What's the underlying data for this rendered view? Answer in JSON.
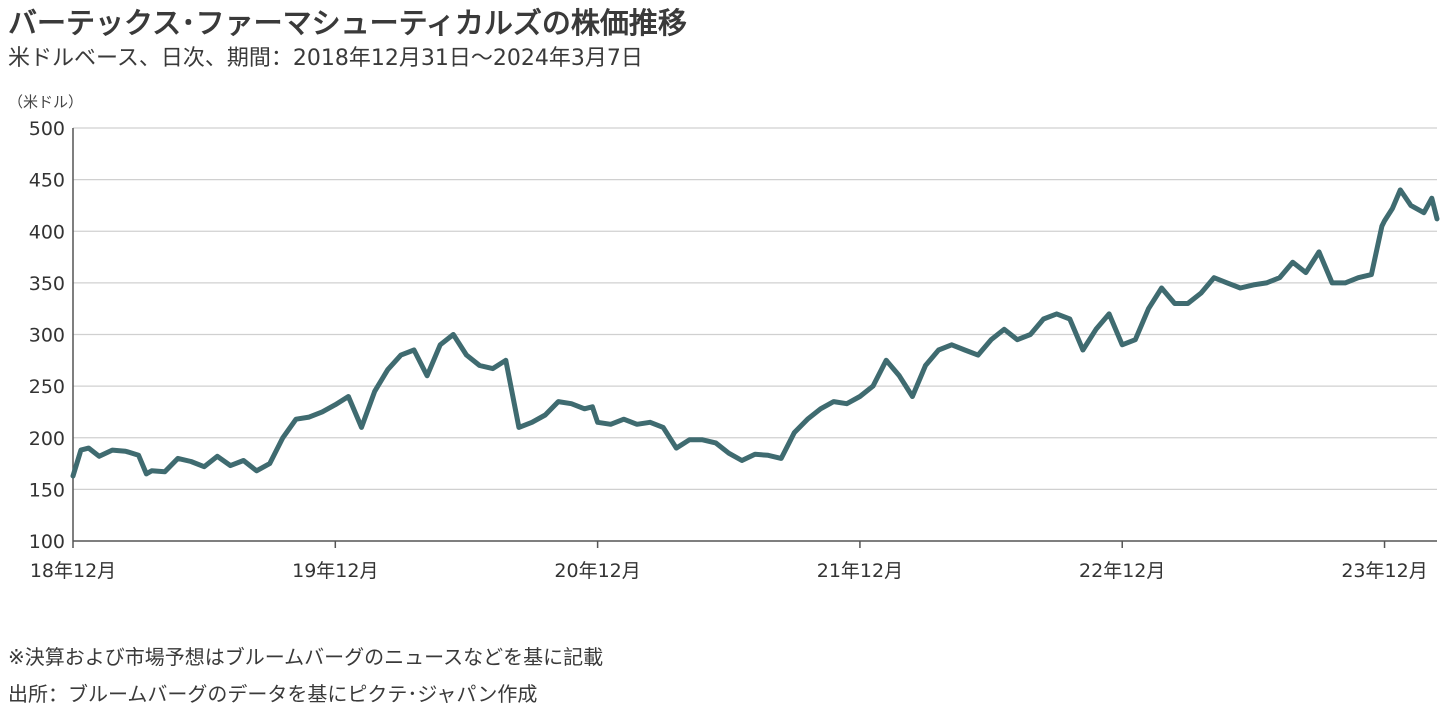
{
  "header": {
    "title": "バーテックス･ファーマシューティカルズの株価推移",
    "subtitle": "米ドルベース、日次、期間：2018年12月31日～2024年3月7日",
    "unit": "（米ドル）"
  },
  "footer": {
    "note": "※決算および市場予想はブルームバーグのニュースなどを基に記載",
    "source": "出所：ブルームバーグのデータを基にピクテ･ジャパン作成"
  },
  "chart_data": {
    "type": "line",
    "title": "バーテックス･ファーマシューティカルズの株価推移",
    "xlabel": "",
    "ylabel": "（米ドル）",
    "ylim": [
      100,
      500
    ],
    "xlim": [
      2018.0,
      2023.2
    ],
    "yticks": [
      100,
      150,
      200,
      250,
      300,
      350,
      400,
      450,
      500
    ],
    "xticks": [
      {
        "value": 2018.0,
        "label": "18年12月"
      },
      {
        "value": 2019.0,
        "label": "19年12月"
      },
      {
        "value": 2020.0,
        "label": "20年12月"
      },
      {
        "value": 2021.0,
        "label": "21年12月"
      },
      {
        "value": 2022.0,
        "label": "22年12月"
      },
      {
        "value": 2023.0,
        "label": "23年12月"
      }
    ],
    "grid": true,
    "line_color": "#3f6b70",
    "grid_color": "#d0d0d0",
    "axis_color": "#555555",
    "series": [
      {
        "x": [
          2018.0,
          2018.03,
          2018.06,
          2018.1,
          2018.15,
          2018.2,
          2018.25,
          2018.28,
          2018.3,
          2018.35,
          2018.4,
          2018.45,
          2018.5,
          2018.55,
          2018.6,
          2018.65,
          2018.7,
          2018.75,
          2018.8,
          2018.85,
          2018.9,
          2018.95,
          2019.0,
          2019.05,
          2019.1,
          2019.15,
          2019.2,
          2019.25,
          2019.3,
          2019.35,
          2019.4,
          2019.45,
          2019.5,
          2019.55,
          2019.6,
          2019.65,
          2019.7,
          2019.75,
          2019.8,
          2019.85,
          2019.9,
          2019.95,
          2019.98,
          2020.0,
          2020.05,
          2020.1,
          2020.15,
          2020.2,
          2020.25,
          2020.3,
          2020.35,
          2020.4,
          2020.45,
          2020.5,
          2020.55,
          2020.6,
          2020.65,
          2020.7,
          2020.75,
          2020.8,
          2020.85,
          2020.9,
          2020.95,
          2021.0,
          2021.05,
          2021.1,
          2021.15,
          2021.2,
          2021.25,
          2021.3,
          2021.35,
          2021.4,
          2021.45,
          2021.5,
          2021.55,
          2021.6,
          2021.65,
          2021.7,
          2021.75,
          2021.8,
          2021.85,
          2021.9,
          2021.95,
          2022.0,
          2022.05,
          2022.1,
          2022.15,
          2022.2,
          2022.25,
          2022.3,
          2022.35,
          2022.4,
          2022.45,
          2022.5,
          2022.55,
          2022.6,
          2022.65,
          2022.7,
          2022.75,
          2022.8,
          2022.85,
          2022.9,
          2022.95,
          2022.99,
          2023.0,
          2023.03,
          2023.06,
          2023.1,
          2023.15,
          2023.18,
          2023.2
        ],
        "y": [
          163,
          188,
          190,
          182,
          188,
          187,
          183,
          165,
          168,
          167,
          180,
          177,
          172,
          182,
          173,
          178,
          168,
          175,
          200,
          218,
          220,
          225,
          232,
          240,
          210,
          245,
          266,
          280,
          285,
          260,
          290,
          300,
          280,
          270,
          267,
          275,
          210,
          215,
          222,
          235,
          233,
          228,
          230,
          215,
          213,
          218,
          213,
          215,
          210,
          190,
          198,
          198,
          195,
          185,
          178,
          184,
          183,
          180,
          205,
          218,
          228,
          235,
          233,
          240,
          250,
          275,
          260,
          240,
          270,
          285,
          290,
          285,
          280,
          295,
          305,
          295,
          300,
          315,
          320,
          315,
          285,
          305,
          320,
          290,
          295,
          325,
          345,
          330,
          330,
          340,
          355,
          350,
          345,
          348,
          350,
          355,
          370,
          360,
          380,
          350,
          350,
          355,
          358,
          405,
          410,
          422,
          440,
          425,
          418,
          432,
          412
        ]
      }
    ]
  }
}
